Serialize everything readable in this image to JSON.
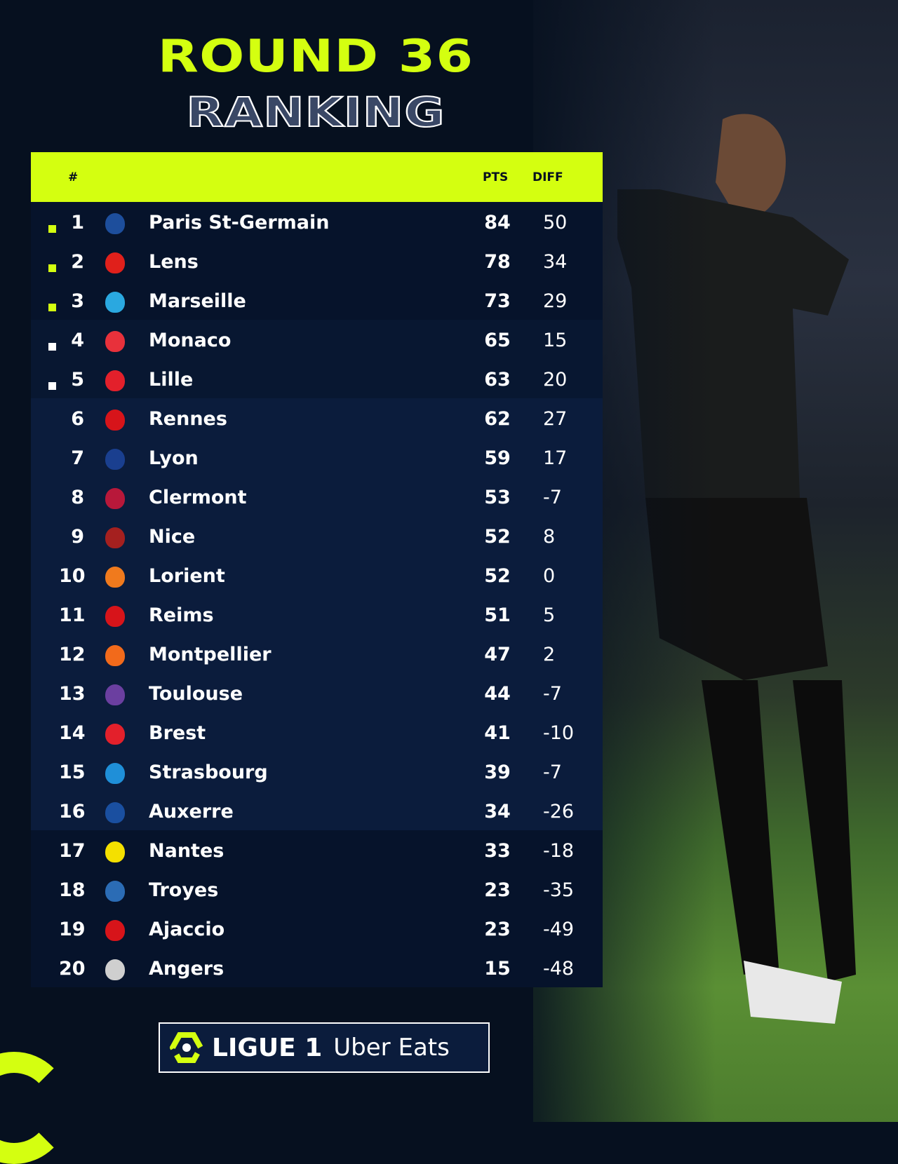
{
  "title": {
    "line1": "ROUND 36",
    "line2": "RANKING"
  },
  "colors": {
    "accent": "#d4ff10",
    "background": "#06101f",
    "qualify_ucl": "#d4ff10",
    "qualify_europe": "#ffffff"
  },
  "table": {
    "headers": {
      "rank": "#",
      "pts": "PTS",
      "diff": "DIFF"
    },
    "rows": [
      {
        "rank": "1",
        "team": "Paris St-Germain",
        "pts": "84",
        "diff": "50",
        "mark": "lime",
        "crest": "#1d4e9c"
      },
      {
        "rank": "2",
        "team": "Lens",
        "pts": "78",
        "diff": "34",
        "mark": "lime",
        "crest": "#e0201b"
      },
      {
        "rank": "3",
        "team": "Marseille",
        "pts": "73",
        "diff": "29",
        "mark": "lime",
        "crest": "#2aa8e0"
      },
      {
        "rank": "4",
        "team": "Monaco",
        "pts": "65",
        "diff": "15",
        "mark": "white",
        "crest": "#e8313b"
      },
      {
        "rank": "5",
        "team": "Lille",
        "pts": "63",
        "diff": "20",
        "mark": "white",
        "crest": "#e3202b"
      },
      {
        "rank": "6",
        "team": "Rennes",
        "pts": "62",
        "diff": "27",
        "mark": "",
        "crest": "#d7141a"
      },
      {
        "rank": "7",
        "team": "Lyon",
        "pts": "59",
        "diff": "17",
        "mark": "",
        "crest": "#1a3f8f"
      },
      {
        "rank": "8",
        "team": "Clermont",
        "pts": "53",
        "diff": "-7",
        "mark": "",
        "crest": "#b8183a"
      },
      {
        "rank": "9",
        "team": "Nice",
        "pts": "52",
        "diff": "8",
        "mark": "",
        "crest": "#a5201f"
      },
      {
        "rank": "10",
        "team": "Lorient",
        "pts": "52",
        "diff": "0",
        "mark": "",
        "crest": "#f07a1d"
      },
      {
        "rank": "11",
        "team": "Reims",
        "pts": "51",
        "diff": "5",
        "mark": "",
        "crest": "#d7141a"
      },
      {
        "rank": "12",
        "team": "Montpellier",
        "pts": "47",
        "diff": "2",
        "mark": "",
        "crest": "#f26a1b"
      },
      {
        "rank": "13",
        "team": "Toulouse",
        "pts": "44",
        "diff": "-7",
        "mark": "",
        "crest": "#6b3fa0"
      },
      {
        "rank": "14",
        "team": "Brest",
        "pts": "41",
        "diff": "-10",
        "mark": "",
        "crest": "#e3202b"
      },
      {
        "rank": "15",
        "team": "Strasbourg",
        "pts": "39",
        "diff": "-7",
        "mark": "",
        "crest": "#1f8fd8"
      },
      {
        "rank": "16",
        "team": "Auxerre",
        "pts": "34",
        "diff": "-26",
        "mark": "",
        "crest": "#1a4fa0"
      },
      {
        "rank": "17",
        "team": "Nantes",
        "pts": "33",
        "diff": "-18",
        "mark": "",
        "crest": "#f4e000"
      },
      {
        "rank": "18",
        "team": "Troyes",
        "pts": "23",
        "diff": "-35",
        "mark": "",
        "crest": "#2b6cb5"
      },
      {
        "rank": "19",
        "team": "Ajaccio",
        "pts": "23",
        "diff": "-49",
        "mark": "",
        "crest": "#d7141a"
      },
      {
        "rank": "20",
        "team": "Angers",
        "pts": "15",
        "diff": "-48",
        "mark": "",
        "crest": "#cfcfcf"
      }
    ]
  },
  "logo": {
    "brand": "LIGUE 1",
    "sponsor": "Uber Eats"
  }
}
